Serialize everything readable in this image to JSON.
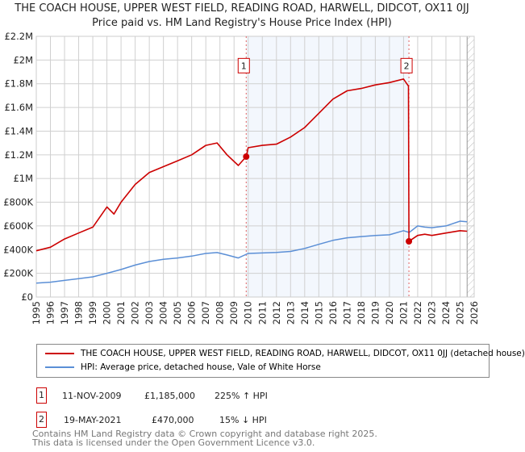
{
  "chart_data": {
    "type": "line",
    "title": "THE COACH HOUSE, UPPER WEST FIELD, READING ROAD, HARWELL, DIDCOT, OX11 0JJ",
    "subtitle": "Price paid vs. HM Land Registry's House Price Index (HPI)",
    "xlim": [
      1995,
      2026
    ],
    "ylim": [
      0,
      2200000
    ],
    "x_ticks": [
      "1995",
      "1996",
      "1997",
      "1998",
      "1999",
      "2000",
      "2001",
      "2002",
      "2003",
      "2004",
      "2005",
      "2006",
      "2007",
      "2008",
      "2009",
      "2010",
      "2011",
      "2012",
      "2013",
      "2014",
      "2015",
      "2016",
      "2017",
      "2018",
      "2019",
      "2020",
      "2021",
      "2022",
      "2023",
      "2024",
      "2025",
      "2026"
    ],
    "y_ticks": [
      {
        "v": 0,
        "label": "£0"
      },
      {
        "v": 200000,
        "label": "£200K"
      },
      {
        "v": 400000,
        "label": "£400K"
      },
      {
        "v": 600000,
        "label": "£600K"
      },
      {
        "v": 800000,
        "label": "£800K"
      },
      {
        "v": 1000000,
        "label": "£1M"
      },
      {
        "v": 1200000,
        "label": "£1.2M"
      },
      {
        "v": 1400000,
        "label": "£1.4M"
      },
      {
        "v": 1600000,
        "label": "£1.6M"
      },
      {
        "v": 1800000,
        "label": "£1.8M"
      },
      {
        "v": 2000000,
        "label": "£2M"
      },
      {
        "v": 2200000,
        "label": "£2.2M"
      }
    ],
    "hpi_series": {
      "name": "HPI: Average price, detached house, Vale of White Horse",
      "color": "#5b8fd6",
      "x": [
        1995,
        1996,
        1997,
        1998,
        1999,
        2000,
        2001,
        2002,
        2003,
        2004,
        2005,
        2006,
        2007,
        2007.8,
        2008.5,
        2009.3,
        2010,
        2011,
        2012,
        2013,
        2014,
        2015,
        2016,
        2017,
        2018,
        2019,
        2020,
        2021,
        2021.4,
        2022,
        2022.5,
        2023,
        2024,
        2025,
        2025.5
      ],
      "y": [
        118000,
        125000,
        140000,
        155000,
        170000,
        200000,
        232000,
        270000,
        300000,
        318000,
        330000,
        345000,
        368000,
        375000,
        355000,
        330000,
        368000,
        372000,
        376000,
        385000,
        410000,
        445000,
        478000,
        500000,
        510000,
        520000,
        525000,
        560000,
        545000,
        600000,
        590000,
        585000,
        600000,
        640000,
        635000
      ]
    },
    "property_series": {
      "name": "THE COACH HOUSE, UPPER WEST FIELD, READING ROAD, HARWELL, DIDCOT, OX11 0JJ (detached house)",
      "color": "#cc0000",
      "x": [
        1995,
        1996,
        1997,
        1998,
        1999,
        2000,
        2000.5,
        2001,
        2002,
        2003,
        2004,
        2005,
        2006,
        2007,
        2007.8,
        2008.5,
        2009.3,
        2009.86,
        2010,
        2011,
        2012,
        2013,
        2014,
        2015,
        2016,
        2017,
        2018,
        2019,
        2020,
        2021,
        2021.35,
        2021.38,
        2022,
        2022.5,
        2023,
        2024,
        2025,
        2025.5
      ],
      "y": [
        390000,
        420000,
        490000,
        540000,
        590000,
        760000,
        700000,
        800000,
        950000,
        1050000,
        1100000,
        1150000,
        1200000,
        1280000,
        1300000,
        1200000,
        1110000,
        1185000,
        1260000,
        1280000,
        1290000,
        1350000,
        1430000,
        1550000,
        1670000,
        1740000,
        1760000,
        1790000,
        1810000,
        1840000,
        1780000,
        470000,
        520000,
        530000,
        520000,
        540000,
        560000,
        555000
      ]
    },
    "annotations": [
      {
        "label": "1",
        "x": 2009.86,
        "y": 1185000
      },
      {
        "label": "2",
        "x": 2021.38,
        "y": 470000
      }
    ],
    "shaded_range": [
      2009.86,
      2021.38
    ],
    "hatched_from": 2025.5
  },
  "legend": {
    "property": "THE COACH HOUSE, UPPER WEST FIELD, READING ROAD, HARWELL, DIDCOT, OX11 0JJ (detached house)",
    "hpi": "HPI: Average price, detached house, Vale of White Horse"
  },
  "sales": [
    {
      "num": "1",
      "date": "11-NOV-2009",
      "price": "£1,185,000",
      "hpi": "225% ↑ HPI"
    },
    {
      "num": "2",
      "date": "19-MAY-2021",
      "price": "£470,000",
      "hpi": "15% ↓ HPI"
    }
  ],
  "footer": {
    "line1": "Contains HM Land Registry data © Crown copyright and database right 2025.",
    "line2": "This data is licensed under the Open Government Licence v3.0."
  }
}
